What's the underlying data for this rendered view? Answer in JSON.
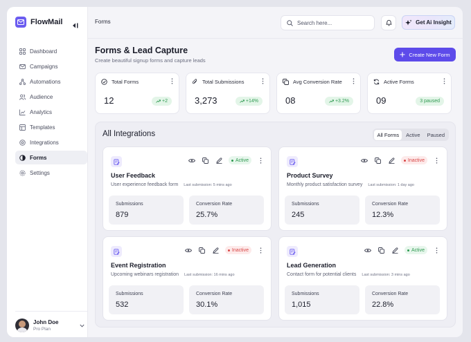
{
  "app": {
    "name": "FlowMail"
  },
  "sidebar": {
    "items": [
      {
        "label": "Dashboard",
        "icon": "grid-icon",
        "active": false
      },
      {
        "label": "Campaigns",
        "icon": "mail-icon",
        "active": false
      },
      {
        "label": "Automations",
        "icon": "workflow-icon",
        "active": false
      },
      {
        "label": "Audience",
        "icon": "users-icon",
        "active": false
      },
      {
        "label": "Analytics",
        "icon": "chart-icon",
        "active": false
      },
      {
        "label": "Templates",
        "icon": "template-icon",
        "active": false
      },
      {
        "label": "Integrations",
        "icon": "plug-icon",
        "active": false
      },
      {
        "label": "Forms",
        "icon": "form-icon",
        "active": true
      },
      {
        "label": "Settings",
        "icon": "gear-icon",
        "active": false
      }
    ]
  },
  "user": {
    "name": "John Doe",
    "plan": "Pro Plan"
  },
  "header": {
    "breadcrumb": "Forms",
    "search_placeholder": "Search here...",
    "insight_label": "Get Ai Insight"
  },
  "page": {
    "title": "Forms & Lead Capture",
    "subtitle": "Create beautiful signup forms and capture leads",
    "create_label": "Create New Form"
  },
  "stats": [
    {
      "label": "Total Forms",
      "value": "12",
      "badge": "+2",
      "icon": "check-circle-icon"
    },
    {
      "label": "Total Submissions",
      "value": "3,273",
      "badge": "+14%",
      "icon": "paperclip-icon"
    },
    {
      "label": "Avg Conversion Rate",
      "value": "08",
      "badge": "+3.2%",
      "icon": "copy-icon"
    },
    {
      "label": "Active Forms",
      "value": "09",
      "badge": "3 paused",
      "icon": "refresh-icon"
    }
  ],
  "integrations": {
    "title": "All Integrations",
    "filters": [
      "All Forms",
      "Active",
      "Paused"
    ],
    "forms": [
      {
        "name": "User Feedback",
        "status": "Active",
        "description": "User experience feedback form",
        "last": "Last submission: 5 mins ago",
        "submissions_label": "Submissions",
        "submissions": "879",
        "conversion_label": "Conversion Rate",
        "conversion": "25.7%"
      },
      {
        "name": "Product Survey",
        "status": "Inactive",
        "description": "Monthly product satisfaction survey",
        "last": "Last submission: 1 day ago",
        "submissions_label": "Submissions",
        "submissions": "245",
        "conversion_label": "Conversion Rate",
        "conversion": "12.3%"
      },
      {
        "name": "Event Registration",
        "status": "Inactive",
        "description": "Upcoming webinars registration",
        "last": "Last submission: 16 mins ago",
        "submissions_label": "Submissions",
        "submissions": "532",
        "conversion_label": "Conversion Rate",
        "conversion": "30.1%"
      },
      {
        "name": "Lead Generation",
        "status": "Active",
        "description": "Contact form for potential clients",
        "last": "Last submission: 3 mins ago",
        "submissions_label": "Submissions",
        "submissions": "1,015",
        "conversion_label": "Conversion Rate",
        "conversion": "22.8%"
      }
    ]
  },
  "colors": {
    "accent": "#5d4bea",
    "active": "#2f9a51",
    "inactive": "#d94848"
  }
}
